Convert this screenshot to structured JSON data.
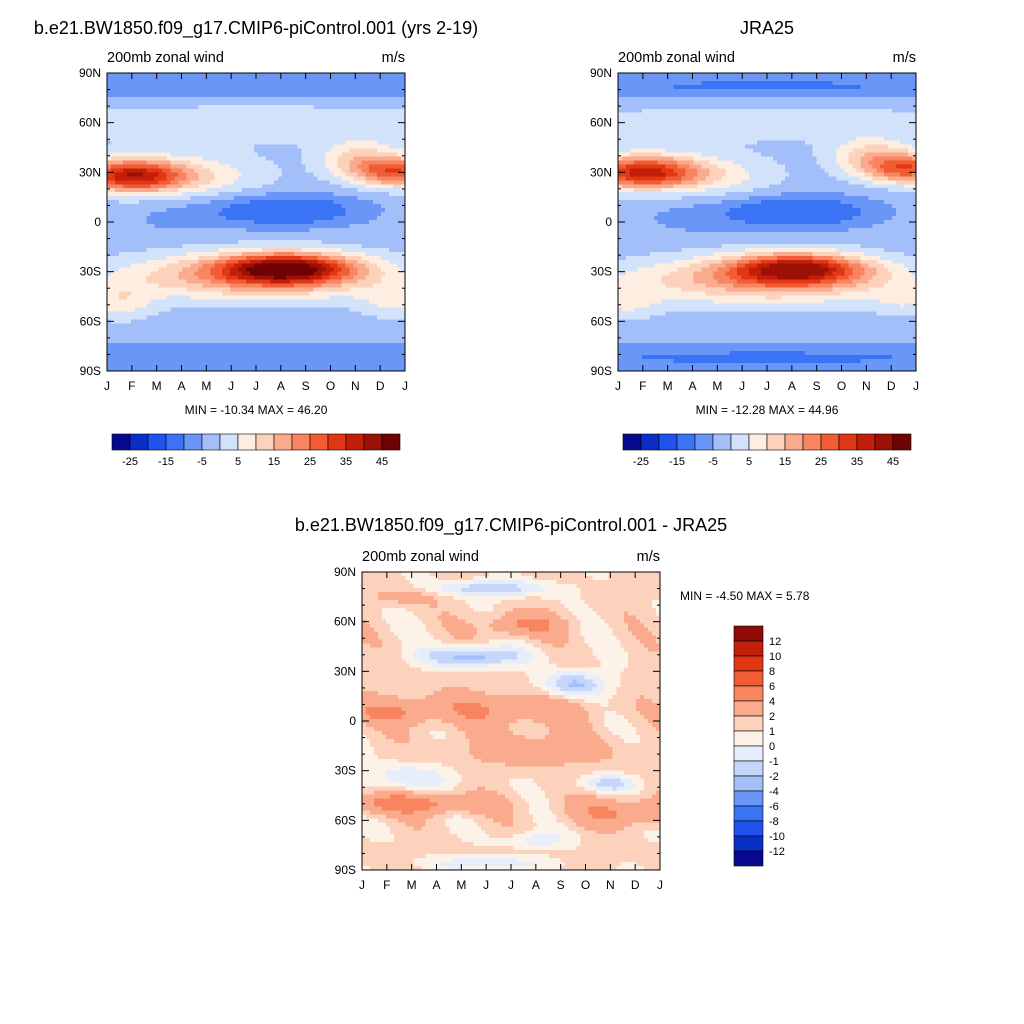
{
  "palette": {
    "levels_abs": [
      -25,
      -20,
      -15,
      -10,
      -5,
      0,
      5,
      10,
      15,
      20,
      25,
      30,
      35,
      40,
      45
    ],
    "colors_abs": [
      "#08088f",
      "#0a2fc8",
      "#1f52ee",
      "#3b73f5",
      "#6a97f7",
      "#a3bff9",
      "#d3e2fb",
      "#fdeee1",
      "#fcd2bc",
      "#fbab8d",
      "#f8855f",
      "#f15c35",
      "#e23714",
      "#c21e0a",
      "#9c1006",
      "#6f0202"
    ],
    "colorbar_labels_abs": [
      "-25",
      "-15",
      "-5",
      "5",
      "15",
      "25",
      "35",
      "45"
    ],
    "levels_diff": [
      -12,
      -10,
      -8,
      -6,
      -4,
      -2,
      -1,
      0,
      1,
      2,
      4,
      6,
      8,
      10,
      12
    ],
    "colors_diff": [
      "#08088f",
      "#0a2fc8",
      "#1f52ee",
      "#3b73f5",
      "#6a97f7",
      "#a3bff9",
      "#c6d6fa",
      "#e6eefc",
      "#fdf2e8",
      "#fcd2bc",
      "#fbab8d",
      "#f8855f",
      "#f15c35",
      "#e23714",
      "#c21e0a",
      "#8f0a04"
    ],
    "colorbar_labels_diff": [
      "12",
      "10",
      "8",
      "6",
      "4",
      "2",
      "1",
      "0",
      "-1",
      "-2",
      "-4",
      "-6",
      "-8",
      "-10",
      "-12"
    ]
  },
  "chart_data": [
    {
      "type": "heatmap",
      "title": "b.e21.BW1850.f09_g17.CMIP6-piControl.001 (yrs 2-19)",
      "left_label": "200mb zonal wind",
      "right_label": "m/s",
      "x_tick_labels": [
        "J",
        "F",
        "M",
        "A",
        "M",
        "J",
        "J",
        "A",
        "S",
        "O",
        "N",
        "D",
        "J"
      ],
      "y_tick_labels": [
        "90N",
        "60N",
        "30N",
        "0",
        "30S",
        "60S",
        "90S"
      ],
      "xlim": [
        0,
        12
      ],
      "ylim": [
        -90,
        90
      ],
      "stats": "MIN = -10.34 MAX =  46.20",
      "min": -10.34,
      "max": 46.2,
      "kind": "model"
    },
    {
      "type": "heatmap",
      "title": "JRA25",
      "left_label": "200mb zonal wind",
      "right_label": "m/s",
      "x_tick_labels": [
        "J",
        "F",
        "M",
        "A",
        "M",
        "J",
        "J",
        "A",
        "S",
        "O",
        "N",
        "D",
        "J"
      ],
      "y_tick_labels": [
        "90N",
        "60N",
        "30N",
        "0",
        "30S",
        "60S",
        "90S"
      ],
      "xlim": [
        0,
        12
      ],
      "ylim": [
        -90,
        90
      ],
      "stats": "MIN = -12.28 MAX =  44.96",
      "min": -12.28,
      "max": 44.96,
      "kind": "obs"
    },
    {
      "type": "heatmap",
      "title": "b.e21.BW1850.f09_g17.CMIP6-piControl.001 - JRA25",
      "left_label": "200mb zonal wind",
      "right_label": "m/s",
      "x_tick_labels": [
        "J",
        "F",
        "M",
        "A",
        "M",
        "J",
        "J",
        "A",
        "S",
        "O",
        "N",
        "D",
        "J"
      ],
      "y_tick_labels": [
        "90N",
        "60N",
        "30N",
        "0",
        "30S",
        "60S",
        "90S"
      ],
      "xlim": [
        0,
        12
      ],
      "ylim": [
        -90,
        90
      ],
      "stats": "MIN =  -4.50 MAX =   5.78",
      "min": -4.5,
      "max": 5.78,
      "kind": "diff"
    }
  ]
}
